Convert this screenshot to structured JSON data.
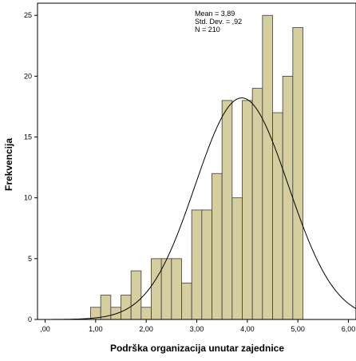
{
  "chart_data": {
    "type": "bar",
    "subtype": "histogram",
    "xlabel": "Podrška organizacija unutar zajednice",
    "ylabel": "Frekvencija",
    "xlim": [
      -0.15,
      6.15
    ],
    "ylim": [
      0,
      26
    ],
    "x_ticks": [
      0,
      1,
      2,
      3,
      4,
      5,
      6
    ],
    "x_tick_labels": [
      ",00",
      "1,00",
      "2,00",
      "3,00",
      "4,00",
      "5,00",
      "6,00"
    ],
    "y_ticks": [
      0,
      5,
      10,
      15,
      20,
      25
    ],
    "y_tick_labels": [
      "0",
      "5",
      "10",
      "15",
      "20",
      "25"
    ],
    "bin_width": 0.2,
    "bins": [
      {
        "x0": 0.9,
        "count": 1
      },
      {
        "x0": 1.1,
        "count": 2
      },
      {
        "x0": 1.3,
        "count": 1
      },
      {
        "x0": 1.5,
        "count": 2
      },
      {
        "x0": 1.7,
        "count": 4
      },
      {
        "x0": 1.9,
        "count": 1
      },
      {
        "x0": 2.1,
        "count": 5
      },
      {
        "x0": 2.3,
        "count": 5
      },
      {
        "x0": 2.5,
        "count": 5
      },
      {
        "x0": 2.7,
        "count": 3
      },
      {
        "x0": 2.9,
        "count": 9
      },
      {
        "x0": 3.1,
        "count": 9
      },
      {
        "x0": 3.3,
        "count": 12
      },
      {
        "x0": 3.5,
        "count": 18
      },
      {
        "x0": 3.7,
        "count": 10
      },
      {
        "x0": 3.9,
        "count": 18
      },
      {
        "x0": 4.1,
        "count": 19
      },
      {
        "x0": 4.3,
        "count": 25
      },
      {
        "x0": 4.5,
        "count": 17
      },
      {
        "x0": 4.7,
        "count": 20
      },
      {
        "x0": 4.9,
        "count": 24
      }
    ],
    "normal_curve": {
      "mean": 3.89,
      "sd": 0.92,
      "n": 210
    },
    "stats": {
      "mean_text": "Mean = 3,89",
      "sd_text": "Std. Dev. = ,92",
      "n_text": "N = 210"
    },
    "grid": false,
    "colors": {
      "bar_fill": "#D5CE9E",
      "bar_stroke": "#3C3C3C",
      "curve": "#000000",
      "frame": "#000000"
    }
  }
}
